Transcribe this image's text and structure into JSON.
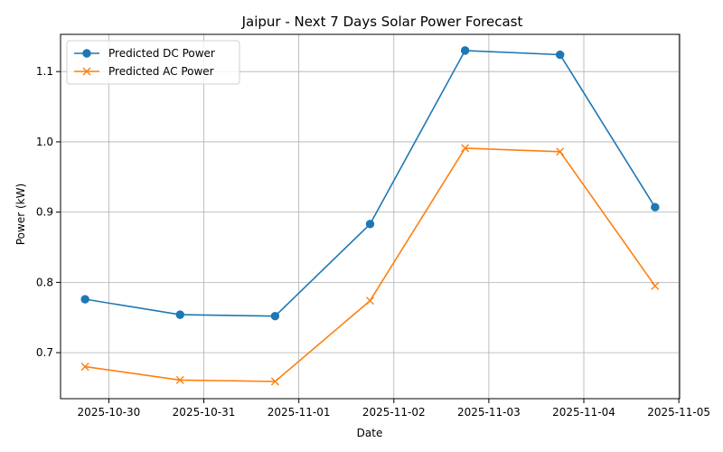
{
  "chart_data": {
    "type": "line",
    "title": "Jaipur - Next 7 Days Solar Power Forecast",
    "xlabel": "Date",
    "ylabel": "Power (kW)",
    "x": [
      "2025-10-29T18:00",
      "2025-10-30T18:00",
      "2025-10-31T18:00",
      "2025-11-01T18:00",
      "2025-11-02T18:00",
      "2025-11-03T18:00",
      "2025-11-04T18:00"
    ],
    "xticks": [
      "2025-10-30",
      "2025-10-31",
      "2025-11-01",
      "2025-11-02",
      "2025-11-03",
      "2025-11-04",
      "2025-11-05"
    ],
    "xlim": [
      "2025-10-29T11:48",
      "2025-11-05T00:12"
    ],
    "ylim": [
      0.6345,
      1.153
    ],
    "yticks": [
      0.7,
      0.8,
      0.9,
      1.0,
      1.1
    ],
    "ytick_labels": [
      "0.7",
      "0.8",
      "0.9",
      "1.0",
      "1.1"
    ],
    "grid": true,
    "legend_position": "top-left",
    "series": [
      {
        "name": "Predicted DC Power",
        "color": "#1f77b4",
        "marker": "circle",
        "values": [
          0.776,
          0.754,
          0.752,
          0.883,
          1.13,
          1.124,
          0.907
        ]
      },
      {
        "name": "Predicted AC Power",
        "color": "#ff7f0e",
        "marker": "x",
        "values": [
          0.68,
          0.661,
          0.659,
          0.774,
          0.991,
          0.986,
          0.795
        ]
      }
    ]
  }
}
